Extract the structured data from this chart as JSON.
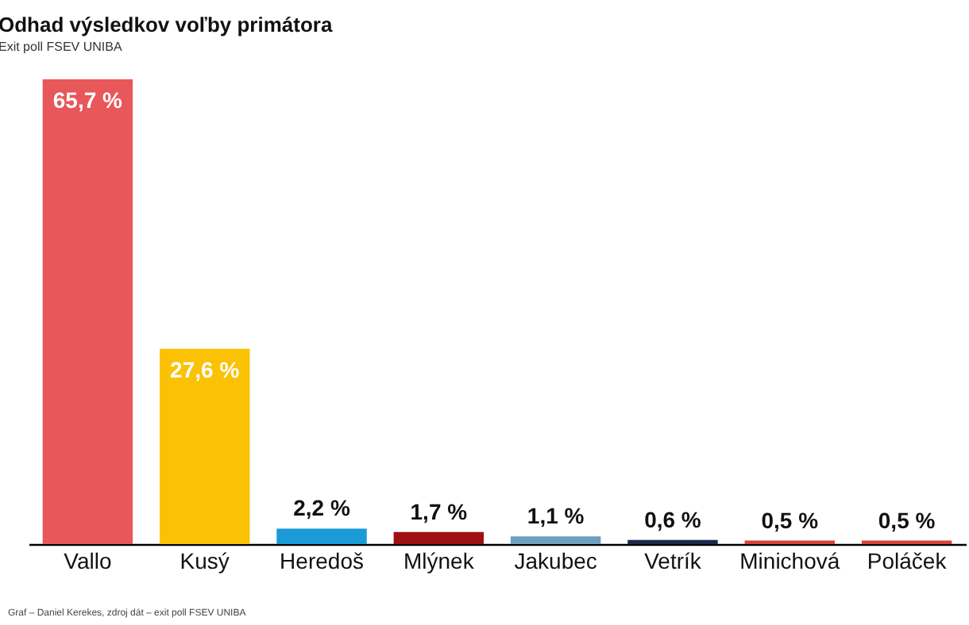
{
  "chart_data": {
    "type": "bar",
    "title": "Odhad výsledkov voľby primátora",
    "subtitle": "Exit poll FSEV UNIBA",
    "categories": [
      "Vallo",
      "Kusý",
      "Heredoš",
      "Mlýnek",
      "Jakubec",
      "Vetrík",
      "Minichová",
      "Poláček"
    ],
    "values": [
      65.7,
      27.6,
      2.2,
      1.7,
      1.1,
      0.6,
      0.5,
      0.5
    ],
    "colors": [
      "#e8575a",
      "#fbc104",
      "#1a9ad6",
      "#a00f12",
      "#6e9fc1",
      "#1c2a4a",
      "#d9413c",
      "#d9413c"
    ],
    "value_labels": [
      "65,7 %",
      "27,6 %",
      "2,2 %",
      "1,7 %",
      "1,1 %",
      "0,6 %",
      "0,5 %",
      "0,5 %"
    ],
    "annotations": [
      "Graf – Daniel Kerekes, zdroj dát – exit poll FSEV UNIBA"
    ],
    "grid": false
  }
}
